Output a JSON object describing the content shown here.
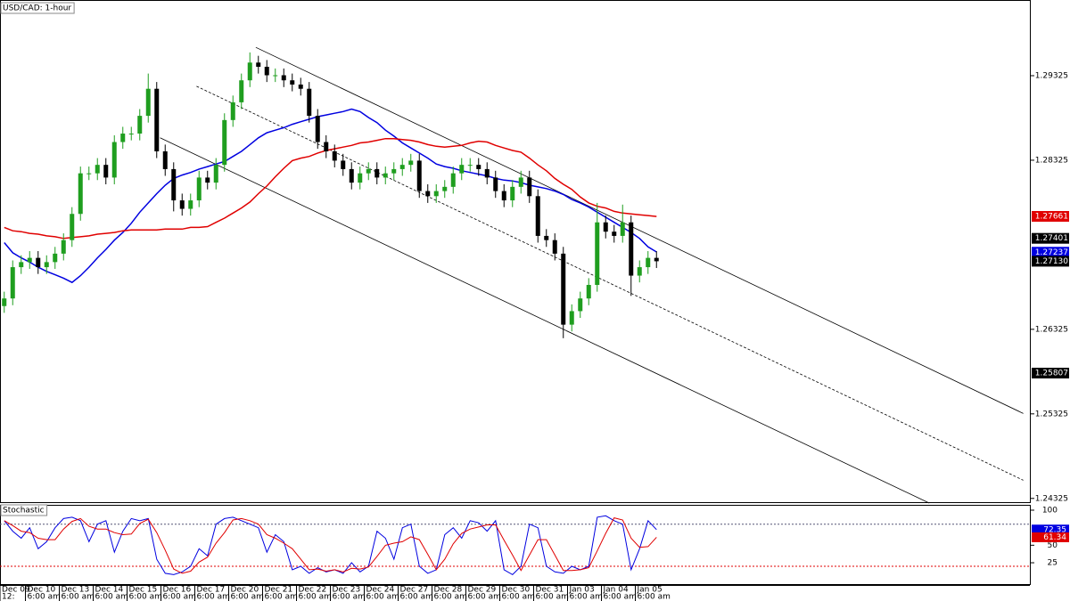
{
  "chart_data": [
    {
      "type": "candlestick",
      "title": "USD/CAD: 1-hour",
      "categories": [
        "Dec 09",
        null,
        null,
        "Dec 10",
        null,
        null,
        null,
        "Dec 13",
        null,
        null,
        null,
        "Dec 14",
        null,
        null,
        null,
        "Dec 15",
        null,
        null,
        null,
        "Dec 16",
        null,
        null,
        null,
        "Dec 17",
        null,
        null,
        null,
        "Dec 20",
        null,
        null,
        null,
        "Dec 21",
        null,
        null,
        null,
        "Dec 22",
        null,
        null,
        null,
        "Dec 23",
        null,
        null,
        null,
        "Dec 24",
        null,
        null,
        null,
        "Dec 27",
        null,
        null,
        null,
        "Dec 28",
        null,
        null,
        null,
        "Dec 29",
        null,
        null,
        null,
        "Dec 30",
        null,
        null,
        null,
        "Dec 31",
        null,
        null,
        null,
        "Jan 03",
        null,
        null,
        null,
        "Jan 04",
        null,
        null,
        null,
        "Jan 05",
        null,
        null
      ],
      "time_labels": [
        "12:",
        null,
        null,
        "6:00 am",
        null,
        null,
        null,
        "6:00 am",
        null,
        null,
        null,
        "6:00 am",
        null,
        null,
        null,
        "6:00 am",
        null,
        null,
        null,
        "6:00 am",
        null,
        null,
        null,
        "6:00 am",
        null,
        null,
        null,
        "6:00 am",
        null,
        null,
        null,
        "6:00 am",
        null,
        null,
        null,
        "6:00 am",
        null,
        null,
        null,
        "6:00 am",
        null,
        null,
        null,
        "6:00 am",
        null,
        null,
        null,
        "6:00 am",
        null,
        null,
        null,
        "6:00 am",
        null,
        null,
        null,
        "6:00 am",
        null,
        null,
        null,
        "6:00 am",
        null,
        null,
        null,
        "6:00 am",
        null,
        null,
        null,
        "6:00 am",
        null,
        null,
        null,
        "6:00 am",
        null,
        null,
        null,
        "6:00 am",
        null,
        null
      ],
      "open": [
        1.266,
        1.2669,
        1.2706,
        1.2712,
        1.2717,
        1.2706,
        1.2712,
        1.2722,
        1.2738,
        1.2769,
        1.2817,
        1.2817,
        1.2827,
        1.2812,
        1.2854,
        1.2864,
        1.2864,
        1.2885,
        1.2917,
        1.2843,
        1.2822,
        1.2785,
        1.2775,
        1.2785,
        1.2812,
        1.2806,
        1.2827,
        1.288,
        1.2901,
        1.2927,
        1.2948,
        1.2943,
        1.2933,
        1.2933,
        1.2927,
        1.2922,
        1.2917,
        1.2885,
        1.2854,
        1.2843,
        1.2832,
        1.2822,
        1.2806,
        1.2817,
        1.2822,
        1.2812,
        1.2817,
        1.2822,
        1.2827,
        1.2832,
        1.2796,
        1.279,
        1.2796,
        1.2801,
        1.2817,
        1.2827,
        1.2827,
        1.2822,
        1.2812,
        1.2796,
        1.2785,
        1.2801,
        1.2812,
        1.279,
        1.2743,
        1.2738,
        1.2722,
        1.2638,
        1.2654,
        1.2669,
        1.2685,
        1.2759,
        1.2748,
        1.2743,
        1.2759,
        1.2696,
        1.2706,
        1.2717
      ],
      "high": [
        1.2677,
        1.2714,
        1.272,
        1.2725,
        1.2725,
        1.272,
        1.273,
        1.2746,
        1.2777,
        1.2825,
        1.2825,
        1.2835,
        1.2835,
        1.2862,
        1.2872,
        1.2872,
        1.2893,
        1.2935,
        1.2925,
        1.2851,
        1.283,
        1.2793,
        1.2793,
        1.282,
        1.282,
        1.2835,
        1.2888,
        1.2909,
        1.2935,
        1.296,
        1.2956,
        1.2951,
        1.2941,
        1.2941,
        1.2935,
        1.293,
        1.2925,
        1.2893,
        1.2862,
        1.2851,
        1.284,
        1.283,
        1.2825,
        1.283,
        1.283,
        1.2825,
        1.283,
        1.2835,
        1.284,
        1.284,
        1.2804,
        1.2804,
        1.2809,
        1.2825,
        1.2835,
        1.2835,
        1.2835,
        1.283,
        1.282,
        1.2804,
        1.2809,
        1.282,
        1.282,
        1.2798,
        1.2751,
        1.2746,
        1.273,
        1.2662,
        1.2677,
        1.2693,
        1.2782,
        1.2767,
        1.2756,
        1.278,
        1.2767,
        1.2714,
        1.2725,
        1.2725
      ],
      "low": [
        1.2652,
        1.2661,
        1.2698,
        1.2704,
        1.2698,
        1.2698,
        1.2704,
        1.2714,
        1.273,
        1.2761,
        1.2809,
        1.2809,
        1.2804,
        1.2804,
        1.2846,
        1.2856,
        1.2856,
        1.2877,
        1.2835,
        1.2814,
        1.2772,
        1.2767,
        1.2767,
        1.2777,
        1.2798,
        1.2798,
        1.2819,
        1.2872,
        1.2893,
        1.2919,
        1.2935,
        1.2925,
        1.2925,
        1.2919,
        1.2914,
        1.2909,
        1.2877,
        1.2846,
        1.2835,
        1.2824,
        1.2814,
        1.2798,
        1.2798,
        1.2809,
        1.2804,
        1.2804,
        1.2809,
        1.2814,
        1.2819,
        1.2788,
        1.2782,
        1.2782,
        1.2788,
        1.2793,
        1.2809,
        1.2819,
        1.2814,
        1.2804,
        1.2788,
        1.2777,
        1.2777,
        1.2793,
        1.2782,
        1.2735,
        1.273,
        1.2714,
        1.2622,
        1.263,
        1.2646,
        1.2661,
        1.2677,
        1.274,
        1.2735,
        1.2735,
        1.2672,
        1.2688,
        1.2698,
        1.2705
      ],
      "close": [
        1.2669,
        1.2706,
        1.2712,
        1.2717,
        1.2706,
        1.2712,
        1.2722,
        1.2738,
        1.2769,
        1.2817,
        1.2817,
        1.2827,
        1.2812,
        1.2854,
        1.2864,
        1.2864,
        1.2885,
        1.2917,
        1.2843,
        1.2822,
        1.2785,
        1.2775,
        1.2785,
        1.2812,
        1.2806,
        1.2827,
        1.288,
        1.2901,
        1.2927,
        1.2948,
        1.2943,
        1.2933,
        1.2933,
        1.2927,
        1.2922,
        1.2917,
        1.2885,
        1.2854,
        1.2843,
        1.2832,
        1.2822,
        1.2806,
        1.2817,
        1.2822,
        1.2812,
        1.2817,
        1.2822,
        1.2827,
        1.2832,
        1.2796,
        1.279,
        1.2796,
        1.2801,
        1.2817,
        1.2827,
        1.2827,
        1.2822,
        1.2812,
        1.2796,
        1.2785,
        1.2801,
        1.2812,
        1.279,
        1.2743,
        1.2738,
        1.2722,
        1.2638,
        1.2654,
        1.2669,
        1.2685,
        1.2759,
        1.2748,
        1.2743,
        1.2759,
        1.2696,
        1.2706,
        1.2717,
        1.2713
      ],
      "up_color": "#1f9e1f",
      "down_color": "#000000",
      "series": [
        {
          "color": "#0000e0",
          "values": [
            1.2735,
            1.2723,
            1.2717,
            1.2712,
            1.2706,
            1.2701,
            1.2697,
            1.2693,
            1.2688,
            1.2696,
            1.2706,
            1.2717,
            1.2727,
            1.2738,
            1.2747,
            1.2758,
            1.2771,
            1.2782,
            1.2793,
            1.2803,
            1.2811,
            1.2815,
            1.2818,
            1.2822,
            1.2825,
            1.2828,
            1.2831,
            1.2837,
            1.2843,
            1.2851,
            1.2859,
            1.2865,
            1.2868,
            1.2871,
            1.2875,
            1.2878,
            1.2881,
            1.2884,
            1.2886,
            1.2888,
            1.289,
            1.2893,
            1.289,
            1.2883,
            1.2877,
            1.2868,
            1.2861,
            1.2853,
            1.2847,
            1.2841,
            1.2835,
            1.2828,
            1.2825,
            1.2823,
            1.282,
            1.2818,
            1.2816,
            1.2814,
            1.2811,
            1.2809,
            1.2808,
            1.2806,
            1.2803,
            1.2801,
            1.2799,
            1.2796,
            1.2792,
            1.2786,
            1.2782,
            1.2777,
            1.2771,
            1.2765,
            1.2759,
            1.2753,
            1.2747,
            1.274,
            1.273,
            1.2724
          ]
        },
        {
          "color": "#e00000",
          "values": [
            1.2753,
            1.2749,
            1.2748,
            1.2746,
            1.2745,
            1.2743,
            1.2742,
            1.274,
            1.2741,
            1.2742,
            1.2743,
            1.2745,
            1.2746,
            1.2747,
            1.2749,
            1.275,
            1.275,
            1.275,
            1.275,
            1.2751,
            1.2751,
            1.2751,
            1.2753,
            1.2753,
            1.2754,
            1.2759,
            1.2764,
            1.277,
            1.2776,
            1.2783,
            1.2793,
            1.2802,
            1.2813,
            1.2823,
            1.2832,
            1.2835,
            1.2837,
            1.2841,
            1.2844,
            1.2846,
            1.2848,
            1.285,
            1.2853,
            1.2854,
            1.2856,
            1.2858,
            1.2858,
            1.2857,
            1.2856,
            1.2854,
            1.2851,
            1.2849,
            1.2848,
            1.2849,
            1.285,
            1.2853,
            1.2855,
            1.2854,
            1.285,
            1.2847,
            1.2844,
            1.2842,
            1.2835,
            1.2827,
            1.282,
            1.2811,
            1.2804,
            1.2798,
            1.2789,
            1.2782,
            1.2778,
            1.2776,
            1.2772,
            1.277,
            1.2769,
            1.2768,
            1.2767,
            1.2766
          ]
        }
      ],
      "trendlines": [
        {
          "x": [
            29.7,
            120.3
          ],
          "y": [
            1.2966,
            1.2533
          ],
          "dashed": false
        },
        {
          "x": [
            22.7,
            120.3
          ],
          "y": [
            1.292,
            1.2454
          ],
          "dashed": true
        },
        {
          "x": [
            18.4,
            109.2
          ],
          "y": [
            1.2859,
            1.2427
          ],
          "dashed": false
        }
      ],
      "ylim": [
        1.2427,
        1.3022
      ],
      "yticks": [
        1.29325,
        1.28325,
        1.26325,
        1.25325,
        1.24325
      ],
      "price_tags": [
        {
          "value": 1.27661,
          "color": "#e00000"
        },
        {
          "value": 1.27401,
          "color": "#000000"
        },
        {
          "value": 1.27237,
          "color": "#0000e0"
        },
        {
          "value": 1.2713,
          "label": "1.27130",
          "color": "#000000"
        },
        {
          "value": 1.25807,
          "color": "#000000"
        }
      ]
    },
    {
      "type": "line",
      "title": "Stochastic",
      "series": [
        {
          "color": "#0000e0",
          "values": [
            85,
            70,
            60,
            75,
            45,
            55,
            75,
            88,
            90,
            85,
            55,
            80,
            85,
            40,
            70,
            88,
            85,
            88,
            30,
            10,
            8,
            12,
            20,
            45,
            35,
            80,
            88,
            90,
            85,
            80,
            75,
            40,
            65,
            55,
            15,
            20,
            10,
            18,
            12,
            15,
            10,
            25,
            12,
            20,
            70,
            60,
            30,
            75,
            80,
            20,
            10,
            15,
            65,
            75,
            60,
            85,
            82,
            70,
            85,
            15,
            8,
            20,
            80,
            75,
            20,
            12,
            10,
            20,
            15,
            20,
            90,
            92,
            85,
            80,
            15,
            45,
            85,
            72.35
          ]
        },
        {
          "color": "#e00000",
          "values": [
            85,
            78,
            70,
            68,
            60,
            58,
            58,
            73,
            84,
            88,
            77,
            73,
            73,
            68,
            65,
            66,
            81,
            87,
            68,
            43,
            16,
            10,
            13,
            26,
            33,
            53,
            68,
            86,
            88,
            85,
            80,
            65,
            60,
            53,
            45,
            30,
            15,
            16,
            13,
            15,
            12,
            17,
            16,
            19,
            34,
            50,
            53,
            55,
            62,
            58,
            37,
            15,
            30,
            52,
            67,
            73,
            76,
            79,
            79,
            57,
            36,
            14,
            36,
            58,
            58,
            36,
            14,
            14,
            15,
            18,
            42,
            67,
            89,
            86,
            60,
            47,
            48,
            61.34
          ]
        }
      ],
      "levels": [
        {
          "value": 80,
          "color": "#555577"
        },
        {
          "value": 20,
          "color": "#e00000"
        }
      ],
      "ylim": [
        -6.7,
        107.6
      ],
      "yticks": [
        100,
        50,
        25
      ]
    }
  ]
}
